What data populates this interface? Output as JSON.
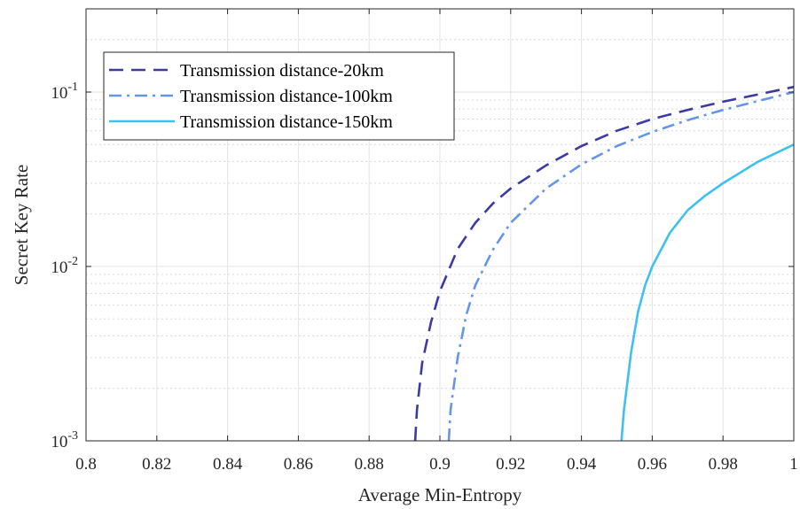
{
  "chart_data": {
    "type": "line",
    "xlabel": "Average Min-Entropy",
    "ylabel": "Secret Key Rate",
    "xlim": [
      0.8,
      1.0
    ],
    "ylim": [
      0.001,
      0.3
    ],
    "yscale": "log",
    "grid": true,
    "minor_grid": true,
    "legend_position": "top-left",
    "x_ticks": [
      "0.8",
      "0.82",
      "0.84",
      "0.86",
      "0.88",
      "0.9",
      "0.92",
      "0.94",
      "0.96",
      "0.98",
      "1"
    ],
    "y_ticks": [
      {
        "value": 0.001,
        "base": "10",
        "exp": "-3"
      },
      {
        "value": 0.01,
        "base": "10",
        "exp": "-2"
      },
      {
        "value": 0.1,
        "base": "10",
        "exp": "-1"
      }
    ],
    "series": [
      {
        "name": "Transmission distance-20km",
        "color": "#3b3ba3",
        "style": "dashed",
        "x": [
          0.893,
          0.8935,
          0.895,
          0.8975,
          0.9,
          0.905,
          0.91,
          0.915,
          0.92,
          0.93,
          0.94,
          0.95,
          0.96,
          0.97,
          0.98,
          0.99,
          1.0
        ],
        "y": [
          0.001,
          0.0015,
          0.0028,
          0.0048,
          0.0072,
          0.0126,
          0.0178,
          0.023,
          0.028,
          0.038,
          0.049,
          0.06,
          0.07,
          0.079,
          0.088,
          0.097,
          0.107
        ]
      },
      {
        "name": "Transmission distance-100km",
        "color": "#6495ed",
        "style": "dashdot",
        "x": [
          0.9025,
          0.903,
          0.905,
          0.9075,
          0.91,
          0.915,
          0.92,
          0.93,
          0.94,
          0.95,
          0.96,
          0.97,
          0.98,
          0.99,
          1.0
        ],
        "y": [
          0.001,
          0.0015,
          0.003,
          0.0053,
          0.0078,
          0.0125,
          0.0178,
          0.028,
          0.0385,
          0.049,
          0.059,
          0.069,
          0.079,
          0.089,
          0.1
        ]
      },
      {
        "name": "Transmission distance-150km",
        "color": "#3ec1f0",
        "style": "solid",
        "x": [
          0.9513,
          0.952,
          0.954,
          0.956,
          0.958,
          0.96,
          0.965,
          0.97,
          0.975,
          0.98,
          0.99,
          1.0
        ],
        "y": [
          0.001,
          0.0015,
          0.0032,
          0.0055,
          0.0078,
          0.01,
          0.0156,
          0.021,
          0.0255,
          0.03,
          0.04,
          0.05
        ]
      }
    ]
  }
}
